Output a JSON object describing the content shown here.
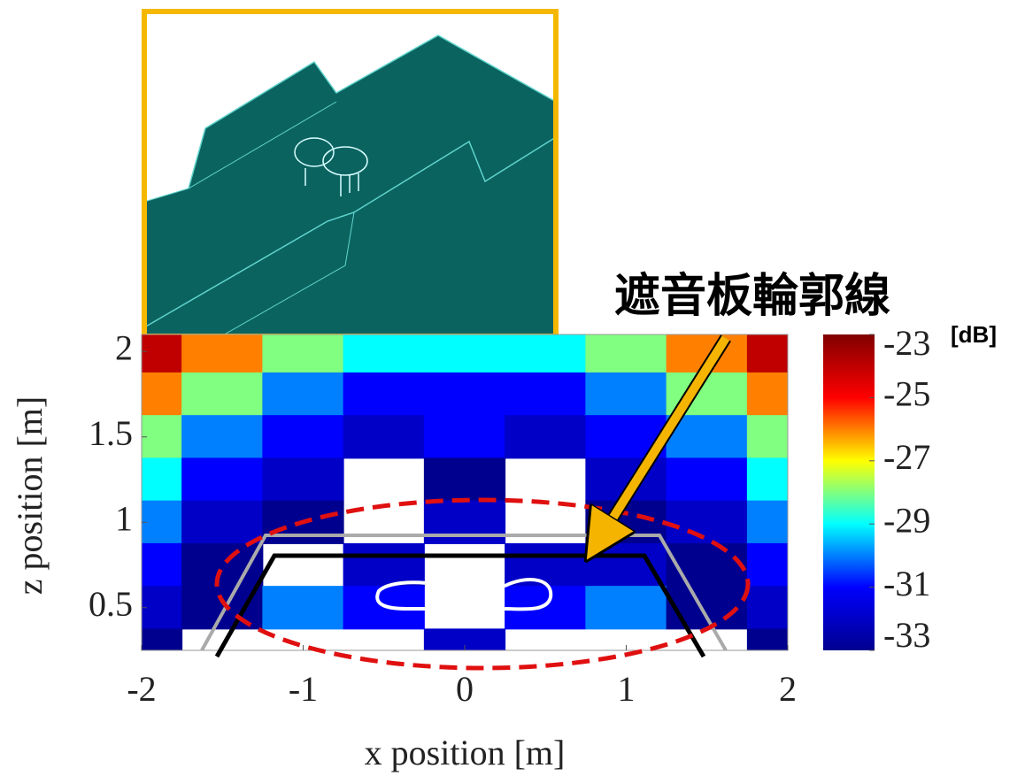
{
  "chart_data": {
    "type": "contour",
    "annotation": "遮音板輪郭線",
    "xlabel": "x position [m]",
    "ylabel": "z position [m]",
    "x": [
      -2,
      -1.5,
      -1,
      -0.5,
      0,
      0.5,
      1,
      1.5,
      2
    ],
    "z": [
      2,
      1.75,
      1.5,
      1.25,
      1,
      0.75,
      0.5,
      0.25
    ],
    "values": [
      [
        -24,
        -26,
        -28,
        -29,
        -29,
        -29,
        -28,
        -26,
        -24
      ],
      [
        -26,
        -28,
        -30,
        -31,
        -31,
        -31,
        -30,
        -28,
        -26
      ],
      [
        -28,
        -30,
        -31,
        -32,
        -31,
        -32,
        -31,
        -30,
        -28
      ],
      [
        -29,
        -31,
        -32,
        null,
        -33,
        null,
        -32,
        -31,
        -29
      ],
      [
        -30,
        -32,
        -33,
        null,
        -32,
        null,
        -33,
        -32,
        -30
      ],
      [
        -31,
        -33,
        null,
        -32,
        null,
        -32,
        -32,
        -33,
        -31
      ],
      [
        -32,
        -33,
        -30,
        -31,
        null,
        -31,
        -30,
        -33,
        -32
      ],
      [
        -33,
        null,
        null,
        null,
        -32,
        null,
        null,
        null,
        -33
      ]
    ],
    "xlim": [
      -2,
      2
    ],
    "xticks": [
      -2,
      -1,
      0,
      1,
      2
    ],
    "ylim": [
      0.25,
      2.1
    ],
    "yticks": [
      0.5,
      1,
      1.5,
      2
    ],
    "colormap": [
      "#00008f",
      "#0000ff",
      "#00ffff",
      "#ffff00",
      "#ff0000",
      "#800000"
    ],
    "colorbar": {
      "label": "[dB]",
      "lim": [
        -33,
        -23
      ],
      "ticks": [
        -23,
        -25,
        -27,
        -29,
        -31,
        -33
      ]
    }
  }
}
